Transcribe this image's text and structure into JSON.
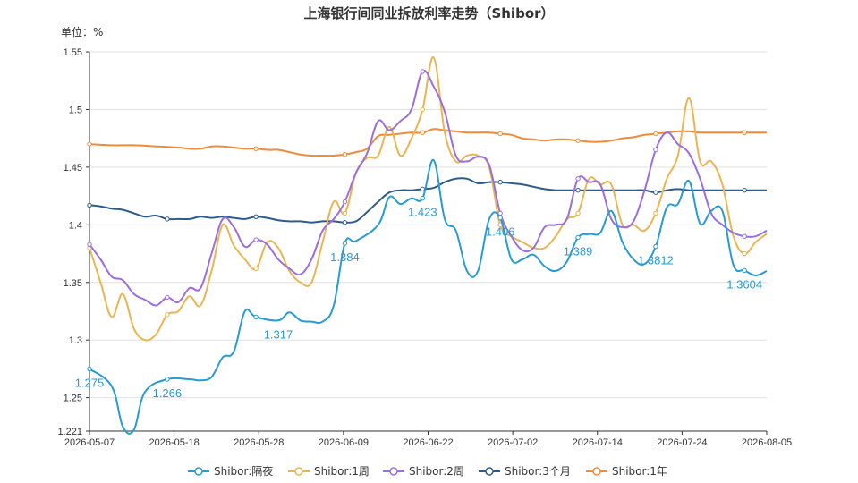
{
  "chart_data": {
    "type": "line",
    "title": "上海银行间同业拆放利率走势（Shibor）",
    "unit_label": "单位：%",
    "x_tick_labels": [
      "2026-05-07",
      "2026-05-18",
      "2026-05-28",
      "2026-06-09",
      "2026-06-22",
      "2026-07-02",
      "2026-07-14",
      "2026-07-24",
      "2026-08-05"
    ],
    "y_ticks": [
      "1.221",
      "1.25",
      "1.3",
      "1.35",
      "1.4",
      "1.45",
      "1.5",
      "1.55"
    ],
    "ylim": [
      1.221,
      1.55
    ],
    "grid": true,
    "legend_position": "bottom",
    "series": [
      {
        "name": "Shibor:隔夜",
        "color": "#2a9ad0",
        "points": [
          [
            0,
            1.275
          ],
          [
            2,
            1.26
          ],
          [
            3,
            1.225
          ],
          [
            4,
            1.222
          ],
          [
            5,
            1.255
          ],
          [
            7,
            1.266
          ],
          [
            9,
            1.266
          ],
          [
            10,
            1.265
          ],
          [
            11,
            1.268
          ],
          [
            12,
            1.285
          ],
          [
            13,
            1.29
          ],
          [
            14,
            1.325
          ],
          [
            15,
            1.32
          ],
          [
            17,
            1.317
          ],
          [
            18,
            1.324
          ],
          [
            19,
            1.317
          ],
          [
            20,
            1.316
          ],
          [
            21,
            1.316
          ],
          [
            22,
            1.33
          ],
          [
            23,
            1.384
          ],
          [
            24,
            1.386
          ],
          [
            26,
            1.4
          ],
          [
            27,
            1.424
          ],
          [
            28,
            1.418
          ],
          [
            29,
            1.423
          ],
          [
            30,
            1.423
          ],
          [
            31,
            1.456
          ],
          [
            32,
            1.405
          ],
          [
            33,
            1.395
          ],
          [
            34,
            1.36
          ],
          [
            35,
            1.36
          ],
          [
            36,
            1.405
          ],
          [
            37,
            1.406
          ],
          [
            38,
            1.37
          ],
          [
            39,
            1.37
          ],
          [
            40,
            1.374
          ],
          [
            41,
            1.364
          ],
          [
            42,
            1.36
          ],
          [
            43,
            1.368
          ],
          [
            44,
            1.389
          ],
          [
            45,
            1.392
          ],
          [
            46,
            1.393
          ],
          [
            47,
            1.412
          ],
          [
            48,
            1.385
          ],
          [
            49,
            1.37
          ],
          [
            50,
            1.366
          ],
          [
            51,
            1.3812
          ],
          [
            52,
            1.415
          ],
          [
            53,
            1.418
          ],
          [
            54,
            1.438
          ],
          [
            55,
            1.401
          ],
          [
            56,
            1.412
          ],
          [
            57,
            1.412
          ],
          [
            58,
            1.365
          ],
          [
            59,
            1.3604
          ],
          [
            60,
            1.356
          ],
          [
            61,
            1.36
          ]
        ],
        "labels": [
          {
            "index": 0,
            "text": "1.275"
          },
          {
            "index": 7,
            "text": "1.266"
          },
          {
            "index": 17,
            "text": "1.317"
          },
          {
            "index": 23,
            "text": "1.384"
          },
          {
            "index": 30,
            "text": "1.423"
          },
          {
            "index": 37,
            "text": "1.406"
          },
          {
            "index": 44,
            "text": "1.389"
          },
          {
            "index": 51,
            "text": "1.3812"
          },
          {
            "index": 59,
            "text": "1.3604"
          }
        ]
      },
      {
        "name": "Shibor:1周",
        "color": "#e6b656",
        "points": [
          [
            0,
            1.38
          ],
          [
            1,
            1.35
          ],
          [
            2,
            1.32
          ],
          [
            3,
            1.34
          ],
          [
            4,
            1.31
          ],
          [
            5,
            1.3
          ],
          [
            6,
            1.305
          ],
          [
            7,
            1.322
          ],
          [
            8,
            1.325
          ],
          [
            9,
            1.338
          ],
          [
            10,
            1.33
          ],
          [
            11,
            1.36
          ],
          [
            12,
            1.4
          ],
          [
            13,
            1.382
          ],
          [
            14,
            1.37
          ],
          [
            15,
            1.362
          ],
          [
            16,
            1.385
          ],
          [
            17,
            1.38
          ],
          [
            18,
            1.36
          ],
          [
            19,
            1.35
          ],
          [
            20,
            1.35
          ],
          [
            21,
            1.385
          ],
          [
            22,
            1.42
          ],
          [
            23,
            1.41
          ],
          [
            24,
            1.445
          ],
          [
            25,
            1.458
          ],
          [
            26,
            1.46
          ],
          [
            27,
            1.485
          ],
          [
            28,
            1.46
          ],
          [
            29,
            1.475
          ],
          [
            30,
            1.5
          ],
          [
            31,
            1.545
          ],
          [
            32,
            1.48
          ],
          [
            33,
            1.455
          ],
          [
            34,
            1.46
          ],
          [
            35,
            1.46
          ],
          [
            36,
            1.45
          ],
          [
            37,
            1.4
          ],
          [
            38,
            1.39
          ],
          [
            39,
            1.385
          ],
          [
            40,
            1.38
          ],
          [
            41,
            1.38
          ],
          [
            42,
            1.39
          ],
          [
            43,
            1.405
          ],
          [
            44,
            1.41
          ],
          [
            45,
            1.44
          ],
          [
            46,
            1.435
          ],
          [
            47,
            1.435
          ],
          [
            48,
            1.4
          ],
          [
            49,
            1.4
          ],
          [
            50,
            1.395
          ],
          [
            51,
            1.41
          ],
          [
            52,
            1.44
          ],
          [
            53,
            1.46
          ],
          [
            54,
            1.51
          ],
          [
            55,
            1.455
          ],
          [
            56,
            1.455
          ],
          [
            57,
            1.435
          ],
          [
            58,
            1.39
          ],
          [
            59,
            1.375
          ],
          [
            60,
            1.385
          ],
          [
            61,
            1.392
          ]
        ]
      },
      {
        "name": "Shibor:2周",
        "color": "#9b6fdb",
        "points": [
          [
            0,
            1.383
          ],
          [
            1,
            1.37
          ],
          [
            2,
            1.355
          ],
          [
            3,
            1.352
          ],
          [
            4,
            1.34
          ],
          [
            5,
            1.335
          ],
          [
            6,
            1.33
          ],
          [
            7,
            1.337
          ],
          [
            8,
            1.333
          ],
          [
            9,
            1.345
          ],
          [
            10,
            1.345
          ],
          [
            11,
            1.375
          ],
          [
            12,
            1.405
          ],
          [
            13,
            1.398
          ],
          [
            14,
            1.381
          ],
          [
            15,
            1.387
          ],
          [
            16,
            1.383
          ],
          [
            17,
            1.37
          ],
          [
            18,
            1.362
          ],
          [
            19,
            1.357
          ],
          [
            20,
            1.37
          ],
          [
            21,
            1.395
          ],
          [
            22,
            1.405
          ],
          [
            23,
            1.42
          ],
          [
            24,
            1.445
          ],
          [
            25,
            1.462
          ],
          [
            26,
            1.49
          ],
          [
            27,
            1.482
          ],
          [
            28,
            1.49
          ],
          [
            29,
            1.5
          ],
          [
            30,
            1.533
          ],
          [
            31,
            1.52
          ],
          [
            32,
            1.498
          ],
          [
            33,
            1.46
          ],
          [
            34,
            1.455
          ],
          [
            35,
            1.459
          ],
          [
            36,
            1.452
          ],
          [
            37,
            1.41
          ],
          [
            38,
            1.39
          ],
          [
            39,
            1.378
          ],
          [
            40,
            1.38
          ],
          [
            41,
            1.398
          ],
          [
            42,
            1.4
          ],
          [
            43,
            1.405
          ],
          [
            44,
            1.44
          ],
          [
            45,
            1.437
          ],
          [
            46,
            1.435
          ],
          [
            47,
            1.405
          ],
          [
            48,
            1.398
          ],
          [
            49,
            1.403
          ],
          [
            50,
            1.43
          ],
          [
            51,
            1.465
          ],
          [
            52,
            1.48
          ],
          [
            53,
            1.47
          ],
          [
            54,
            1.462
          ],
          [
            55,
            1.44
          ],
          [
            56,
            1.41
          ],
          [
            57,
            1.4
          ],
          [
            58,
            1.393
          ],
          [
            59,
            1.39
          ],
          [
            60,
            1.39
          ],
          [
            61,
            1.395
          ]
        ]
      },
      {
        "name": "Shibor:3个月",
        "color": "#2e5c8a",
        "points": [
          [
            0,
            1.417
          ],
          [
            1,
            1.416
          ],
          [
            2,
            1.414
          ],
          [
            3,
            1.413
          ],
          [
            4,
            1.41
          ],
          [
            5,
            1.407
          ],
          [
            6,
            1.408
          ],
          [
            7,
            1.405
          ],
          [
            8,
            1.405
          ],
          [
            9,
            1.405
          ],
          [
            10,
            1.407
          ],
          [
            11,
            1.406
          ],
          [
            12,
            1.407
          ],
          [
            13,
            1.406
          ],
          [
            14,
            1.405
          ],
          [
            15,
            1.407
          ],
          [
            16,
            1.406
          ],
          [
            17,
            1.404
          ],
          [
            18,
            1.403
          ],
          [
            19,
            1.403
          ],
          [
            20,
            1.402
          ],
          [
            21,
            1.403
          ],
          [
            22,
            1.403
          ],
          [
            23,
            1.402
          ],
          [
            24,
            1.403
          ],
          [
            25,
            1.411
          ],
          [
            26,
            1.42
          ],
          [
            27,
            1.428
          ],
          [
            28,
            1.43
          ],
          [
            29,
            1.43
          ],
          [
            30,
            1.431
          ],
          [
            31,
            1.432
          ],
          [
            32,
            1.437
          ],
          [
            33,
            1.44
          ],
          [
            34,
            1.44
          ],
          [
            35,
            1.436
          ],
          [
            36,
            1.437
          ],
          [
            37,
            1.437
          ],
          [
            38,
            1.436
          ],
          [
            39,
            1.435
          ],
          [
            40,
            1.433
          ],
          [
            41,
            1.431
          ],
          [
            42,
            1.43
          ],
          [
            43,
            1.43
          ],
          [
            44,
            1.43
          ],
          [
            45,
            1.43
          ],
          [
            46,
            1.43
          ],
          [
            47,
            1.43
          ],
          [
            48,
            1.43
          ],
          [
            49,
            1.43
          ],
          [
            50,
            1.43
          ],
          [
            51,
            1.428
          ],
          [
            52,
            1.43
          ],
          [
            53,
            1.431
          ],
          [
            54,
            1.43
          ],
          [
            55,
            1.43
          ],
          [
            56,
            1.43
          ],
          [
            57,
            1.43
          ],
          [
            58,
            1.43
          ],
          [
            59,
            1.43
          ],
          [
            60,
            1.43
          ],
          [
            61,
            1.43
          ]
        ]
      },
      {
        "name": "Shibor:1年",
        "color": "#ee8c3b",
        "points": [
          [
            0,
            1.47
          ],
          [
            2,
            1.469
          ],
          [
            4,
            1.469
          ],
          [
            6,
            1.468
          ],
          [
            8,
            1.467
          ],
          [
            9,
            1.466
          ],
          [
            10,
            1.466
          ],
          [
            11,
            1.468
          ],
          [
            12,
            1.468
          ],
          [
            13,
            1.467
          ],
          [
            14,
            1.466
          ],
          [
            15,
            1.466
          ],
          [
            16,
            1.465
          ],
          [
            17,
            1.465
          ],
          [
            18,
            1.463
          ],
          [
            19,
            1.461
          ],
          [
            20,
            1.46
          ],
          [
            21,
            1.46
          ],
          [
            22,
            1.46
          ],
          [
            23,
            1.461
          ],
          [
            24,
            1.463
          ],
          [
            25,
            1.466
          ],
          [
            26,
            1.477
          ],
          [
            27,
            1.478
          ],
          [
            28,
            1.479
          ],
          [
            29,
            1.48
          ],
          [
            30,
            1.48
          ],
          [
            31,
            1.483
          ],
          [
            32,
            1.482
          ],
          [
            33,
            1.481
          ],
          [
            34,
            1.48
          ],
          [
            35,
            1.48
          ],
          [
            36,
            1.48
          ],
          [
            37,
            1.479
          ],
          [
            38,
            1.478
          ],
          [
            39,
            1.475
          ],
          [
            40,
            1.474
          ],
          [
            41,
            1.473
          ],
          [
            42,
            1.474
          ],
          [
            43,
            1.474
          ],
          [
            44,
            1.473
          ],
          [
            45,
            1.472
          ],
          [
            46,
            1.472
          ],
          [
            47,
            1.473
          ],
          [
            48,
            1.475
          ],
          [
            49,
            1.476
          ],
          [
            50,
            1.478
          ],
          [
            51,
            1.479
          ],
          [
            52,
            1.48
          ],
          [
            53,
            1.481
          ],
          [
            54,
            1.481
          ],
          [
            55,
            1.48
          ],
          [
            56,
            1.48
          ],
          [
            57,
            1.48
          ],
          [
            58,
            1.48
          ],
          [
            59,
            1.48
          ],
          [
            60,
            1.48
          ],
          [
            61,
            1.48
          ]
        ]
      }
    ]
  }
}
